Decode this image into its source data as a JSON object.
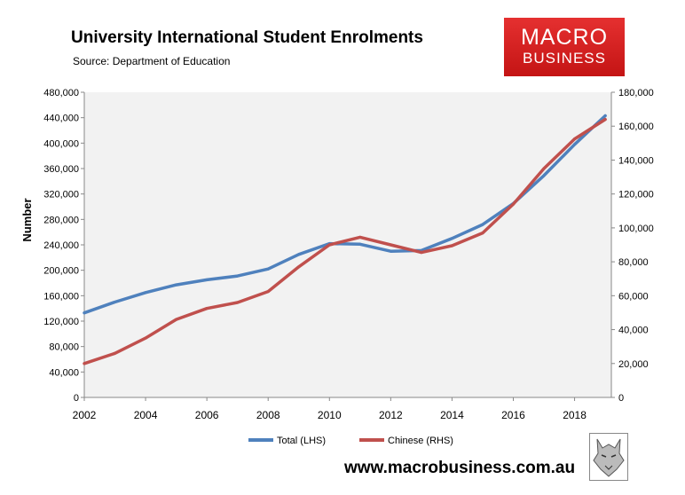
{
  "title": "University International Student Enrolments",
  "source": "Source: Department of Education",
  "logo": {
    "line1": "MACRO",
    "line2": "BUSINESS"
  },
  "website": "www.macrobusiness.com.au",
  "wolf_logo_icon": "wolf-icon",
  "colors": {
    "total": "#4F81BD",
    "chinese": "#C0504D",
    "plot_bg": "#F2F2F2"
  },
  "chart_data": {
    "type": "line",
    "ylabel": "Number",
    "x": [
      2002,
      2003,
      2004,
      2005,
      2006,
      2007,
      2008,
      2009,
      2010,
      2011,
      2012,
      2013,
      2014,
      2015,
      2016,
      2017,
      2018,
      2019
    ],
    "xticks": [
      "2002",
      "2004",
      "2006",
      "2008",
      "2010",
      "2012",
      "2014",
      "2016",
      "2018"
    ],
    "xlim": [
      2002,
      2019.2
    ],
    "ylim_left": [
      0,
      480000
    ],
    "ylim_right": [
      0,
      180000
    ],
    "yticks_left": [
      "0",
      "40,000",
      "80,000",
      "120,000",
      "160,000",
      "200,000",
      "240,000",
      "280,000",
      "320,000",
      "360,000",
      "400,000",
      "440,000",
      "480,000"
    ],
    "yticks_right": [
      "0",
      "20,000",
      "40,000",
      "60,000",
      "80,000",
      "100,000",
      "120,000",
      "140,000",
      "160,000",
      "180,000"
    ],
    "series": [
      {
        "name": "Total (LHS)",
        "axis": "left",
        "values": [
          133000,
          150000,
          165000,
          177000,
          185000,
          191000,
          202000,
          225000,
          242000,
          241000,
          230000,
          231000,
          250000,
          272000,
          305000,
          349000,
          398000,
          443000
        ]
      },
      {
        "name": "Chinese (RHS)",
        "axis": "right",
        "values": [
          20000,
          26000,
          35000,
          46000,
          52500,
          56000,
          62500,
          77000,
          90000,
          94500,
          90000,
          85500,
          89500,
          97000,
          114000,
          135000,
          152500,
          164000
        ]
      }
    ],
    "legend": "bottom-center"
  }
}
